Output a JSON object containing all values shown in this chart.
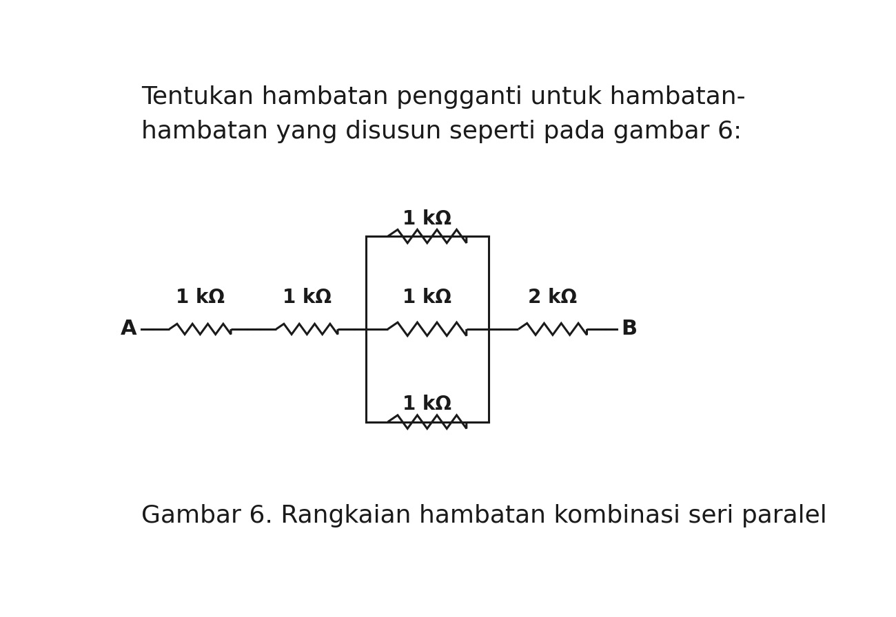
{
  "title_line1": "Tentukan hambatan pengganti untuk hambatan-",
  "title_line2": "hambatan yang disusun seperti pada gambar 6:",
  "caption": "Gambar 6. Rangkaian hambatan kombinasi seri paralel",
  "background_color": "#ffffff",
  "wire_color": "#1a1a1a",
  "label_r1": "1 kΩ",
  "label_r2": "1 kΩ",
  "label_r3_top": "1 kΩ",
  "label_r3_mid": "1 kΩ",
  "label_r3_bot": "1 kΩ",
  "label_r4": "2 kΩ",
  "label_A": "A",
  "label_B": "B",
  "title_fontsize": 26,
  "label_fontsize": 20,
  "caption_fontsize": 26,
  "lw": 2.2
}
